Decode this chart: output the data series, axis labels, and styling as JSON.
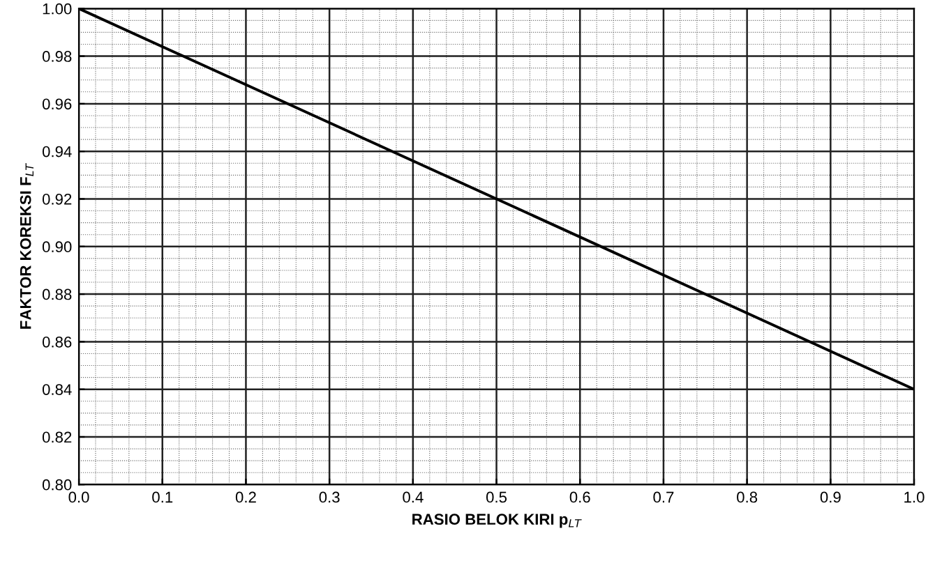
{
  "chart_data": {
    "type": "line",
    "xlabel": "RASIO BELOK KIRI p$_{LT}$",
    "ylabel": "FAKTOR KOREKSI F$_{LT}$",
    "x": [
      0.0,
      1.0
    ],
    "series": [
      {
        "color": "#000000",
        "values": [
          1.0,
          0.84
        ]
      }
    ],
    "xlim": [
      0.0,
      1.0
    ],
    "ylim": [
      0.8,
      1.0
    ],
    "xticks": [
      {
        "value": 0.0,
        "label": "0.0"
      },
      {
        "value": 0.1,
        "label": "0.1"
      },
      {
        "value": 0.2,
        "label": "0.2"
      },
      {
        "value": 0.3,
        "label": "0.3"
      },
      {
        "value": 0.4,
        "label": "0.4"
      },
      {
        "value": 0.5,
        "label": "0.5"
      },
      {
        "value": 0.6,
        "label": "0.6"
      },
      {
        "value": 0.7,
        "label": "0.7"
      },
      {
        "value": 0.8,
        "label": "0.8"
      },
      {
        "value": 0.9,
        "label": "0.9"
      },
      {
        "value": 1.0,
        "label": "1.0"
      }
    ],
    "yticks": [
      {
        "value": 0.8,
        "label": "0.80"
      },
      {
        "value": 0.82,
        "label": "0.82"
      },
      {
        "value": 0.84,
        "label": "0.84"
      },
      {
        "value": 0.86,
        "label": "0.86"
      },
      {
        "value": 0.88,
        "label": "0.88"
      },
      {
        "value": 0.9,
        "label": "0.90"
      },
      {
        "value": 0.92,
        "label": "0.92"
      },
      {
        "value": 0.94,
        "label": "0.94"
      },
      {
        "value": 0.96,
        "label": "0.96"
      },
      {
        "value": 0.98,
        "label": "0.98"
      },
      {
        "value": 1.0,
        "label": "1.00"
      }
    ],
    "grid": true,
    "line_style": "solid",
    "marker": "none"
  }
}
